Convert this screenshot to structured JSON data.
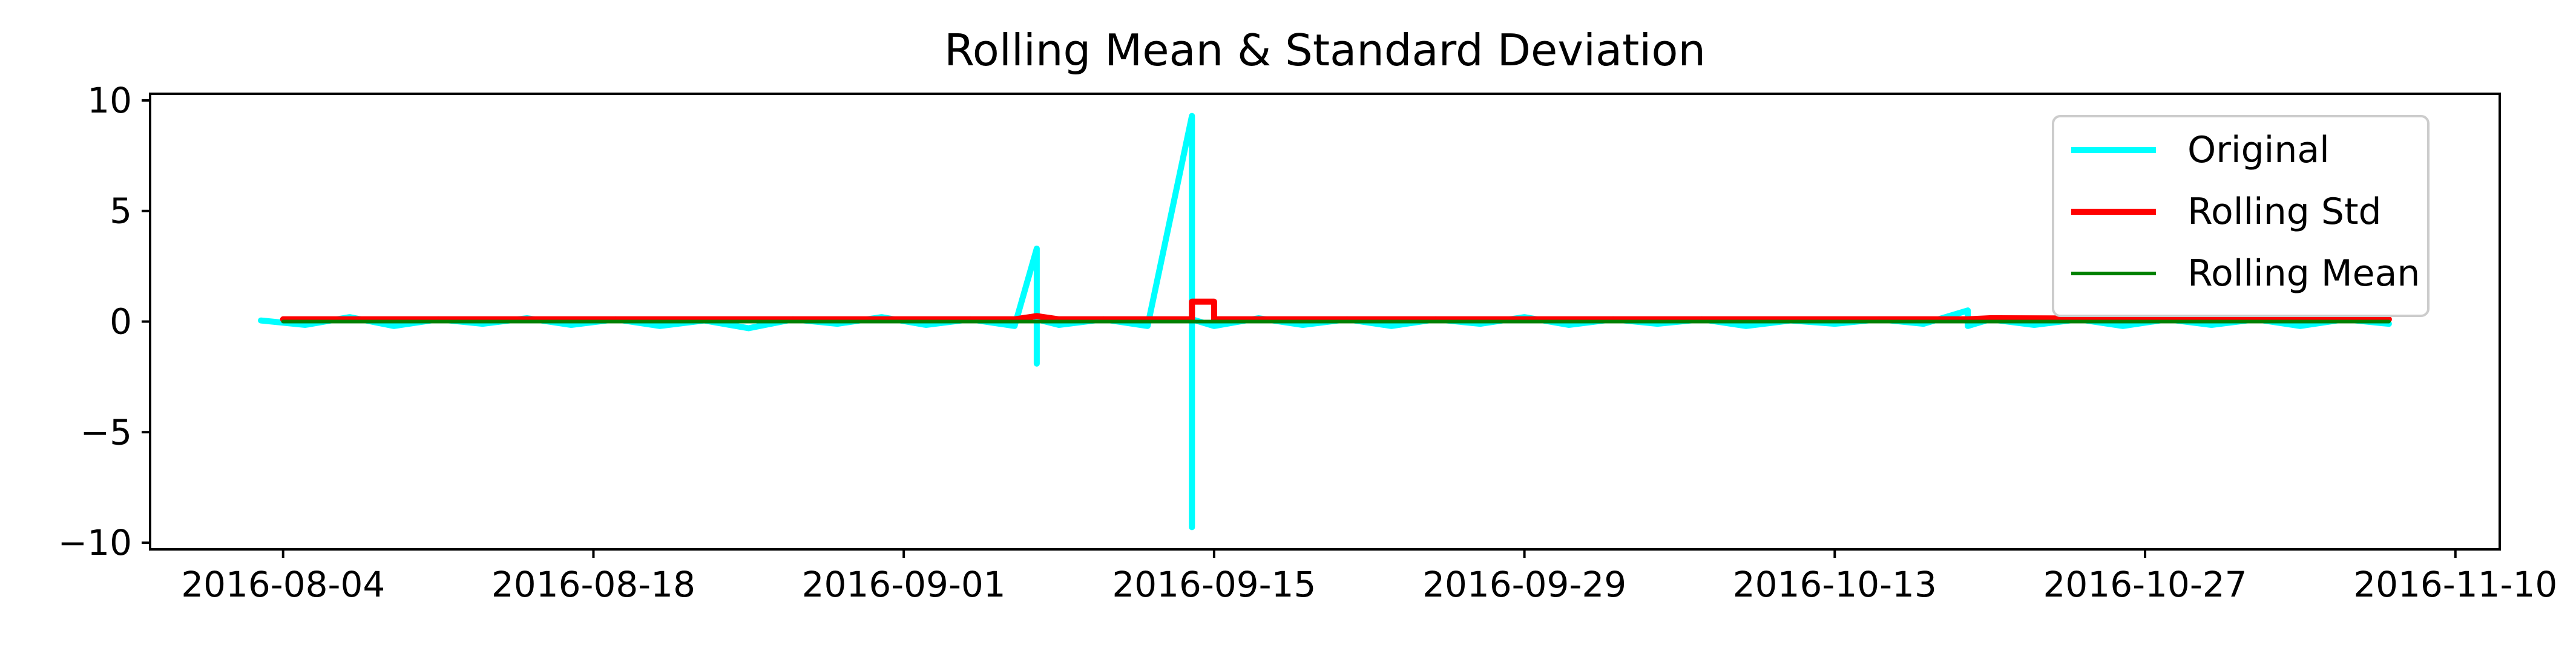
{
  "chart_data": {
    "type": "line",
    "title": "Rolling Mean & Standard Deviation",
    "xlabel": "",
    "ylabel": "",
    "x_tick_labels": [
      "2016-08-04",
      "2016-08-18",
      "2016-09-01",
      "2016-09-15",
      "2016-09-29",
      "2016-10-13",
      "2016-10-27",
      "2016-11-10"
    ],
    "y_tick_labels": [
      "10",
      "5",
      "0",
      "−5",
      "−10"
    ],
    "y_ticks": [
      10,
      5,
      0,
      -5,
      -10
    ],
    "xlim": [
      "2016-07-29",
      "2016-11-12"
    ],
    "ylim": [
      -10.3,
      10.3
    ],
    "grid": false,
    "legend_position": "top-right",
    "series": [
      {
        "name": "Original",
        "color": "#00ffff",
        "x": [
          "2016-08-03",
          "2016-08-05",
          "2016-08-07",
          "2016-08-09",
          "2016-08-11",
          "2016-08-13",
          "2016-08-15",
          "2016-08-17",
          "2016-08-19",
          "2016-08-21",
          "2016-08-23",
          "2016-08-25",
          "2016-08-27",
          "2016-08-29",
          "2016-08-31",
          "2016-09-02",
          "2016-09-04",
          "2016-09-06",
          "2016-09-07",
          "2016-09-07",
          "2016-09-07",
          "2016-09-08",
          "2016-09-10",
          "2016-09-12",
          "2016-09-14",
          "2016-09-14",
          "2016-09-14",
          "2016-09-15",
          "2016-09-17",
          "2016-09-19",
          "2016-09-21",
          "2016-09-23",
          "2016-09-25",
          "2016-09-27",
          "2016-09-29",
          "2016-10-01",
          "2016-10-03",
          "2016-10-05",
          "2016-10-07",
          "2016-10-09",
          "2016-10-11",
          "2016-10-13",
          "2016-10-15",
          "2016-10-17",
          "2016-10-19",
          "2016-10-19",
          "2016-10-20",
          "2016-10-22",
          "2016-10-24",
          "2016-10-26",
          "2016-10-28",
          "2016-10-30",
          "2016-11-01",
          "2016-11-03",
          "2016-11-05",
          "2016-11-07"
        ],
        "y": [
          0.05,
          -0.15,
          0.2,
          -0.2,
          0.1,
          -0.1,
          0.15,
          -0.15,
          0.1,
          -0.2,
          0.05,
          -0.3,
          0.1,
          -0.1,
          0.2,
          -0.15,
          0.1,
          -0.2,
          3.3,
          -1.9,
          0.1,
          -0.15,
          0.1,
          -0.2,
          9.3,
          -9.3,
          0.1,
          -0.2,
          0.15,
          -0.15,
          0.1,
          -0.2,
          0.1,
          -0.1,
          0.2,
          -0.15,
          0.1,
          -0.1,
          0.1,
          -0.2,
          0.05,
          -0.1,
          0.1,
          -0.1,
          0.5,
          -0.2,
          0.1,
          -0.15,
          0.1,
          -0.2,
          0.1,
          -0.15,
          0.1,
          -0.2,
          0.1,
          -0.1
        ]
      },
      {
        "name": "Rolling Std",
        "color": "#ff0000",
        "x": [
          "2016-08-04",
          "2016-08-20",
          "2016-09-06",
          "2016-09-07",
          "2016-09-08",
          "2016-09-14",
          "2016-09-14",
          "2016-09-15",
          "2016-09-15",
          "2016-10-01",
          "2016-10-19",
          "2016-10-20",
          "2016-11-07"
        ],
        "y": [
          0.1,
          0.1,
          0.1,
          0.25,
          0.1,
          0.1,
          0.9,
          0.9,
          0.1,
          0.1,
          0.1,
          0.15,
          0.1
        ]
      },
      {
        "name": "Rolling Mean",
        "color": "#008000",
        "x": [
          "2016-08-04",
          "2016-09-01",
          "2016-09-29",
          "2016-10-27",
          "2016-11-07"
        ],
        "y": [
          0.0,
          0.0,
          0.0,
          0.0,
          0.0
        ]
      }
    ]
  }
}
